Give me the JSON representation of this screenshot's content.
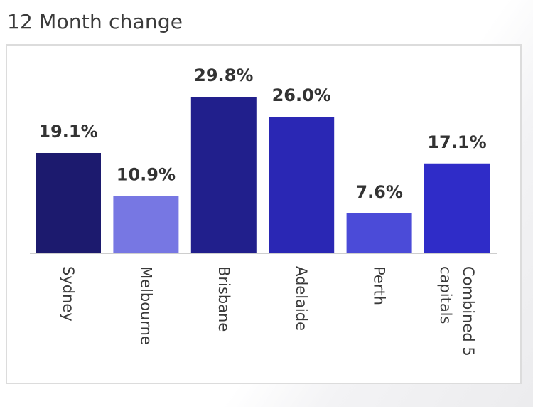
{
  "header": {
    "title": "12 Month change"
  },
  "chart_data": {
    "type": "bar",
    "title": "12 Month change",
    "xlabel": "",
    "ylabel": "",
    "ylim": [
      0,
      30
    ],
    "grid": false,
    "legend": "none",
    "categories": [
      "Sydney",
      "Melbourne",
      "Brisbane",
      "Adelaide",
      "Perth",
      "Combined 5 capitals"
    ],
    "category_lines": [
      [
        "Sydney"
      ],
      [
        "Melbourne"
      ],
      [
        "Brisbane"
      ],
      [
        "Adelaide"
      ],
      [
        "Perth"
      ],
      [
        "Combined 5",
        "capitals"
      ]
    ],
    "values": [
      19.1,
      10.9,
      29.8,
      26.0,
      7.6,
      17.1
    ],
    "data_labels": [
      "19.1%",
      "10.9%",
      "29.8%",
      "26.0%",
      "7.6%",
      "17.1%"
    ],
    "colors": [
      "#1c1a6e",
      "#7777e3",
      "#211f8c",
      "#2a27b4",
      "#4b4bd8",
      "#2f2cc8"
    ],
    "axis_color": "#bdbdbd"
  }
}
